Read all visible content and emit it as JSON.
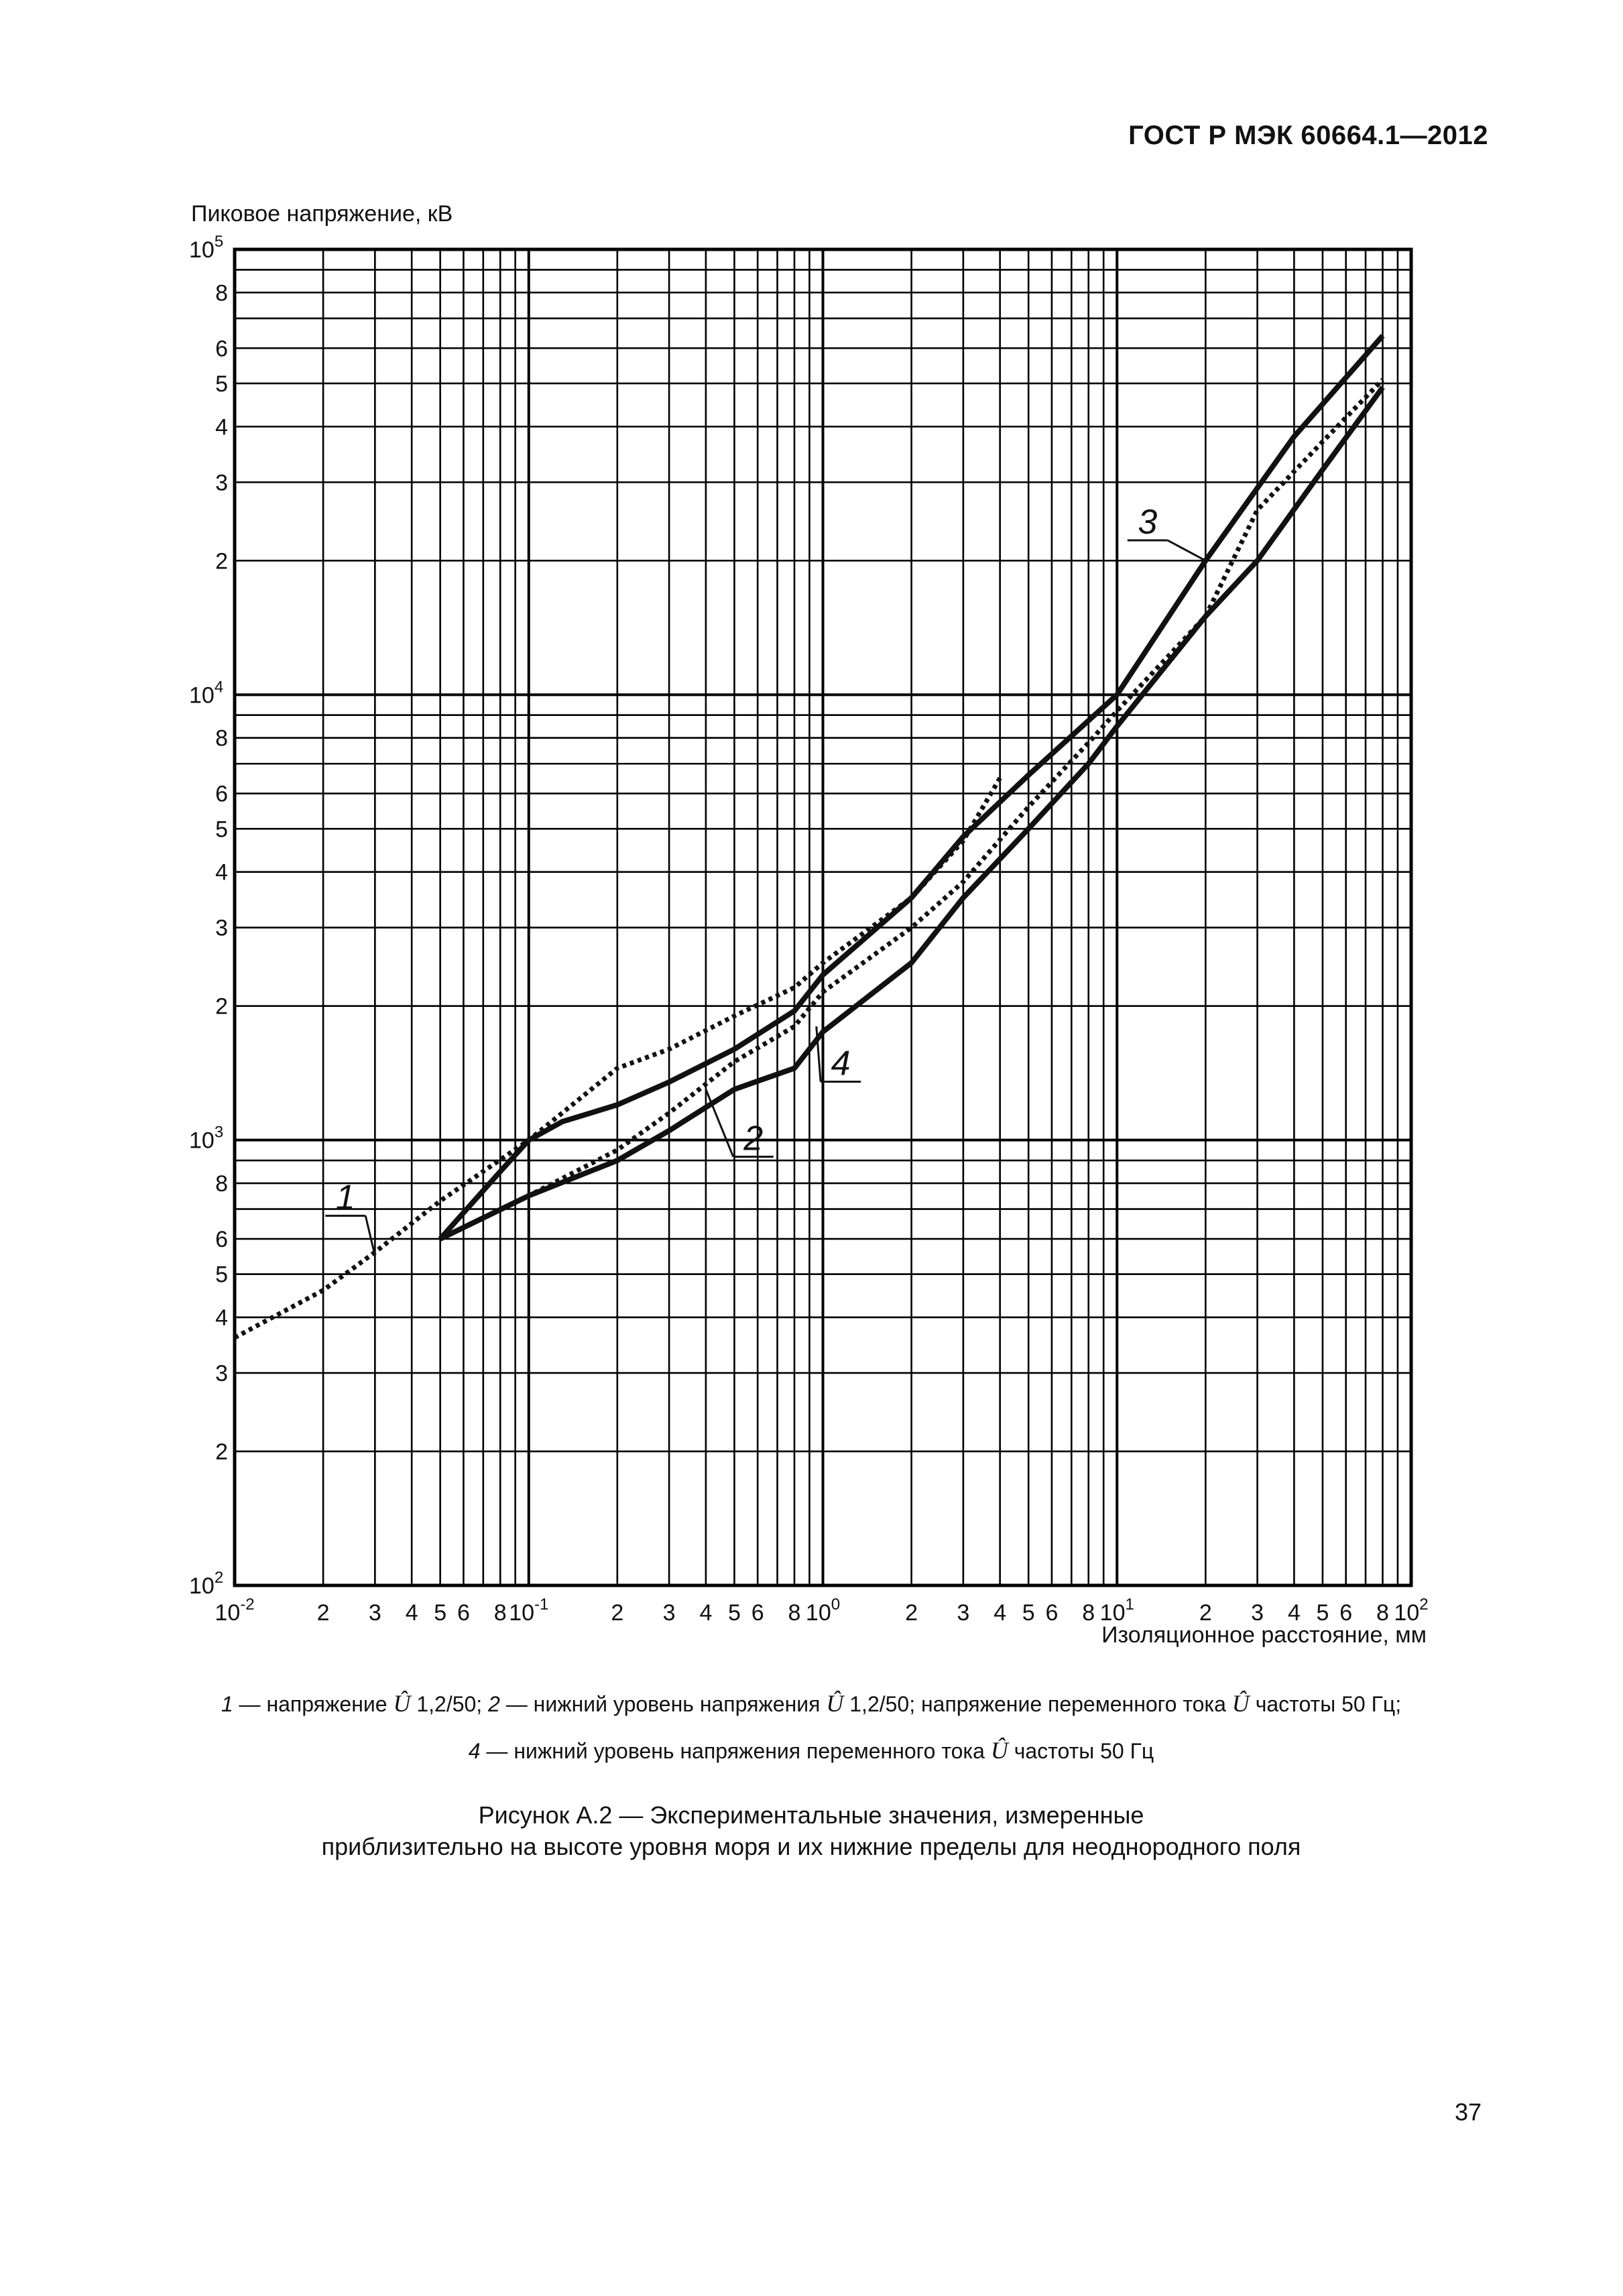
{
  "header": {
    "doc_id": "ГОСТ Р МЭК 60664.1—2012"
  },
  "chart_data": {
    "type": "line",
    "title": "",
    "xlabel": "Изоляционное расстояние, мм",
    "ylabel": "Пиковое напряжение, кВ",
    "xscale": "log",
    "yscale": "log",
    "xlim": [
      0.01,
      100
    ],
    "ylim": [
      100,
      100000
    ],
    "grid": true,
    "x_ticks": [
      {
        "v": 0.01,
        "b": "10",
        "e": "-2"
      },
      {
        "v": 0.02,
        "b": "2",
        "e": ""
      },
      {
        "v": 0.03,
        "b": "3",
        "e": ""
      },
      {
        "v": 0.04,
        "b": "4",
        "e": ""
      },
      {
        "v": 0.05,
        "b": "5",
        "e": ""
      },
      {
        "v": 0.06,
        "b": "6",
        "e": ""
      },
      {
        "v": 0.08,
        "b": "8",
        "e": ""
      },
      {
        "v": 0.1,
        "b": "10",
        "e": "-1"
      },
      {
        "v": 0.2,
        "b": "2",
        "e": ""
      },
      {
        "v": 0.3,
        "b": "3",
        "e": ""
      },
      {
        "v": 0.4,
        "b": "4",
        "e": ""
      },
      {
        "v": 0.5,
        "b": "5",
        "e": ""
      },
      {
        "v": 0.6,
        "b": "6",
        "e": ""
      },
      {
        "v": 0.8,
        "b": "8",
        "e": ""
      },
      {
        "v": 1,
        "b": "10",
        "e": "0"
      },
      {
        "v": 2,
        "b": "2",
        "e": ""
      },
      {
        "v": 3,
        "b": "3",
        "e": ""
      },
      {
        "v": 4,
        "b": "4",
        "e": ""
      },
      {
        "v": 5,
        "b": "5",
        "e": ""
      },
      {
        "v": 6,
        "b": "6",
        "e": ""
      },
      {
        "v": 8,
        "b": "8",
        "e": ""
      },
      {
        "v": 10,
        "b": "10",
        "e": "1"
      },
      {
        "v": 20,
        "b": "2",
        "e": ""
      },
      {
        "v": 30,
        "b": "3",
        "e": ""
      },
      {
        "v": 40,
        "b": "4",
        "e": ""
      },
      {
        "v": 50,
        "b": "5",
        "e": ""
      },
      {
        "v": 60,
        "b": "6",
        "e": ""
      },
      {
        "v": 80,
        "b": "8",
        "e": ""
      },
      {
        "v": 100,
        "b": "10",
        "e": "2"
      }
    ],
    "y_ticks": [
      {
        "v": 100,
        "b": "10",
        "e": "2"
      },
      {
        "v": 200,
        "b": "2",
        "e": ""
      },
      {
        "v": 300,
        "b": "3",
        "e": ""
      },
      {
        "v": 400,
        "b": "4",
        "e": ""
      },
      {
        "v": 500,
        "b": "5",
        "e": ""
      },
      {
        "v": 600,
        "b": "6",
        "e": ""
      },
      {
        "v": 800,
        "b": "8",
        "e": ""
      },
      {
        "v": 1000,
        "b": "10",
        "e": "3"
      },
      {
        "v": 2000,
        "b": "2",
        "e": ""
      },
      {
        "v": 3000,
        "b": "3",
        "e": ""
      },
      {
        "v": 4000,
        "b": "4",
        "e": ""
      },
      {
        "v": 5000,
        "b": "5",
        "e": ""
      },
      {
        "v": 6000,
        "b": "6",
        "e": ""
      },
      {
        "v": 8000,
        "b": "8",
        "e": ""
      },
      {
        "v": 10000,
        "b": "10",
        "e": "4"
      },
      {
        "v": 20000,
        "b": "2",
        "e": ""
      },
      {
        "v": 30000,
        "b": "3",
        "e": ""
      },
      {
        "v": 40000,
        "b": "4",
        "e": ""
      },
      {
        "v": 50000,
        "b": "5",
        "e": ""
      },
      {
        "v": 60000,
        "b": "6",
        "e": ""
      },
      {
        "v": 80000,
        "b": "8",
        "e": ""
      },
      {
        "v": 100000,
        "b": "10",
        "e": "5"
      }
    ],
    "series": [
      {
        "name": "1",
        "style": "dotted",
        "points": [
          [
            0.01,
            360
          ],
          [
            0.02,
            460
          ],
          [
            0.03,
            560
          ],
          [
            0.05,
            730
          ],
          [
            0.1,
            1000
          ],
          [
            0.2,
            1450
          ],
          [
            0.3,
            1600
          ],
          [
            0.5,
            1900
          ],
          [
            0.8,
            2200
          ],
          [
            1,
            2500
          ],
          [
            2,
            3500
          ],
          [
            3,
            4700
          ],
          [
            4,
            6500
          ]
        ]
      },
      {
        "name": "2",
        "style": "dotted",
        "points": [
          [
            0.05,
            600
          ],
          [
            0.1,
            750
          ],
          [
            0.2,
            950
          ],
          [
            0.3,
            1150
          ],
          [
            0.5,
            1500
          ],
          [
            0.8,
            1800
          ],
          [
            1,
            2150
          ],
          [
            2,
            3000
          ],
          [
            3,
            3800
          ],
          [
            5,
            5600
          ],
          [
            8,
            7800
          ],
          [
            10,
            9200
          ],
          [
            20,
            15000
          ],
          [
            30,
            26000
          ],
          [
            50,
            37000
          ],
          [
            80,
            51000
          ]
        ]
      },
      {
        "name": "3",
        "style": "solid",
        "points": [
          [
            0.05,
            600
          ],
          [
            0.08,
            850
          ],
          [
            0.1,
            1000
          ],
          [
            0.13,
            1100
          ],
          [
            0.2,
            1200
          ],
          [
            0.3,
            1350
          ],
          [
            0.5,
            1600
          ],
          [
            0.8,
            1950
          ],
          [
            1,
            2350
          ],
          [
            2,
            3500
          ],
          [
            3,
            4800
          ],
          [
            5,
            6600
          ],
          [
            10,
            10000
          ],
          [
            20,
            20000
          ],
          [
            40,
            38000
          ],
          [
            80,
            64000
          ]
        ]
      },
      {
        "name": "4",
        "style": "solid",
        "points": [
          [
            0.05,
            600
          ],
          [
            0.1,
            750
          ],
          [
            0.2,
            900
          ],
          [
            0.3,
            1050
          ],
          [
            0.5,
            1300
          ],
          [
            0.8,
            1450
          ],
          [
            1,
            1750
          ],
          [
            2,
            2500
          ],
          [
            3,
            3500
          ],
          [
            5,
            5000
          ],
          [
            8,
            7000
          ],
          [
            10,
            8500
          ],
          [
            20,
            15000
          ],
          [
            30,
            20000
          ],
          [
            50,
            32000
          ],
          [
            80,
            49000
          ]
        ]
      }
    ],
    "annotations": [
      {
        "text": "1",
        "anchor": [
          0.03,
          550
        ],
        "pos": [
          0.0238,
          700
        ]
      },
      {
        "text": "2",
        "anchor": [
          0.4,
          1300
        ],
        "pos": [
          0.58,
          950
        ]
      },
      {
        "text": "3",
        "anchor": [
          20,
          20000
        ],
        "pos": [
          12.7,
          23000
        ]
      },
      {
        "text": "4",
        "anchor": [
          0.95,
          1800
        ],
        "pos": [
          1.15,
          1400
        ]
      }
    ]
  },
  "legend": {
    "line1": [
      {
        "t": "1",
        "s": "num"
      },
      {
        "t": " — напряжение  ",
        "s": ""
      },
      {
        "t": "Û",
        "s": "u"
      },
      {
        "t": " 1,2/50; ",
        "s": ""
      },
      {
        "t": "2",
        "s": "num"
      },
      {
        "t": " — нижний уровень напряжения  ",
        "s": ""
      },
      {
        "t": "Û",
        "s": "u"
      },
      {
        "t": " 1,2/50; напряжение переменного тока  ",
        "s": ""
      },
      {
        "t": "Û",
        "s": "u"
      },
      {
        "t": " частоты 50 Гц;",
        "s": ""
      }
    ],
    "line2": [
      {
        "t": "4",
        "s": "num"
      },
      {
        "t": " — нижний уровень напряжения переменного тока  ",
        "s": ""
      },
      {
        "t": "Û",
        "s": "u"
      },
      {
        "t": " частоты 50 Гц",
        "s": ""
      }
    ]
  },
  "caption": {
    "line1": "Рисунок А.2 — Экспериментальные значения, измеренные",
    "line2": "приблизительно на высоте уровня моря и их нижние пределы для  неоднородного поля"
  },
  "page_number": "37"
}
